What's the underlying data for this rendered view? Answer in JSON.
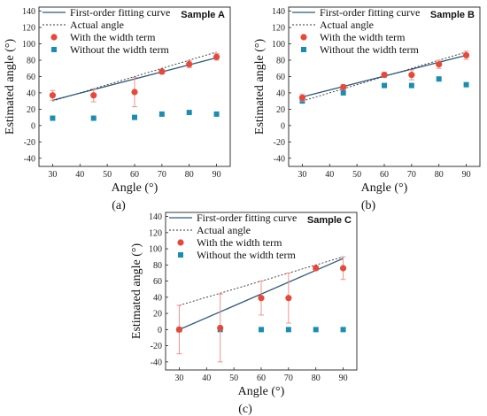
{
  "legend": {
    "fit": "First-order fitting curve",
    "actual": "Actual angle",
    "with": "With the width term",
    "without": "Without the width term"
  },
  "colors": {
    "fit": "#2f5b7a",
    "actual": "#333333",
    "with": "#e8483a",
    "error": "#f08a80",
    "without": "#1b8eb0"
  },
  "chart_data": [
    {
      "type": "scatter",
      "panel": "(a)",
      "sample_label": "Sample A",
      "xlabel": "Angle (°)",
      "ylabel": "Estimated angle (°)",
      "x_ticks": [
        30,
        40,
        50,
        60,
        70,
        80,
        90
      ],
      "y_ticks": [
        -40,
        -20,
        0,
        20,
        40,
        60,
        80,
        100,
        120,
        140
      ],
      "xlim": [
        25,
        95
      ],
      "ylim": [
        -50,
        145
      ],
      "fit_line": {
        "x": [
          30,
          90
        ],
        "y": [
          31,
          83
        ]
      },
      "actual_line": {
        "x": [
          30,
          90
        ],
        "y": [
          30,
          90
        ]
      },
      "series": [
        {
          "name": "With the width term",
          "x": [
            30,
            45,
            60,
            70,
            80,
            90
          ],
          "y": [
            37,
            37,
            41,
            66,
            75,
            84
          ],
          "err": [
            6,
            8,
            18,
            3,
            4,
            4
          ]
        },
        {
          "name": "Without the width term",
          "x": [
            30,
            45,
            60,
            70,
            80,
            90
          ],
          "y": [
            9,
            9,
            10,
            14,
            16,
            14
          ]
        }
      ]
    },
    {
      "type": "scatter",
      "panel": "(b)",
      "sample_label": "Sample B",
      "xlabel": "Angle (°)",
      "ylabel": "Estimated angle (°)",
      "x_ticks": [
        30,
        40,
        50,
        60,
        70,
        80,
        90
      ],
      "y_ticks": [
        -40,
        -20,
        0,
        20,
        40,
        60,
        80,
        100,
        120,
        140
      ],
      "xlim": [
        25,
        95
      ],
      "ylim": [
        -50,
        145
      ],
      "fit_line": {
        "x": [
          30,
          90
        ],
        "y": [
          35,
          86
        ]
      },
      "actual_line": {
        "x": [
          30,
          90
        ],
        "y": [
          30,
          90
        ]
      },
      "series": [
        {
          "name": "With the width term",
          "x": [
            30,
            45,
            60,
            70,
            80,
            90
          ],
          "y": [
            34,
            47,
            62,
            62,
            75,
            86
          ],
          "err": [
            4,
            3,
            3,
            6,
            5,
            5
          ]
        },
        {
          "name": "Without the width term",
          "x": [
            30,
            45,
            60,
            70,
            80,
            90
          ],
          "y": [
            30,
            40,
            49,
            49,
            57,
            50
          ]
        }
      ]
    },
    {
      "type": "scatter",
      "panel": "(c)",
      "sample_label": "Sample C",
      "xlabel": "Angle (°)",
      "ylabel": "Estimated angle (°)",
      "x_ticks": [
        30,
        40,
        50,
        60,
        70,
        80,
        90
      ],
      "y_ticks": [
        -40,
        -20,
        0,
        20,
        40,
        60,
        80,
        100,
        120,
        140
      ],
      "xlim": [
        25,
        95
      ],
      "ylim": [
        -50,
        145
      ],
      "fit_line": {
        "x": [
          30,
          90
        ],
        "y": [
          0,
          88
        ]
      },
      "actual_line": {
        "x": [
          30,
          90
        ],
        "y": [
          30,
          90
        ]
      },
      "series": [
        {
          "name": "With the width term",
          "x": [
            30,
            45,
            60,
            70,
            80,
            90
          ],
          "y": [
            0,
            2,
            39,
            39,
            76,
            76
          ],
          "err": [
            30,
            42,
            21,
            31,
            3,
            14
          ]
        },
        {
          "name": "Without the width term",
          "x": [
            30,
            45,
            60,
            70,
            80,
            90
          ],
          "y": [
            0,
            0,
            0,
            0,
            0,
            0
          ]
        }
      ]
    }
  ]
}
